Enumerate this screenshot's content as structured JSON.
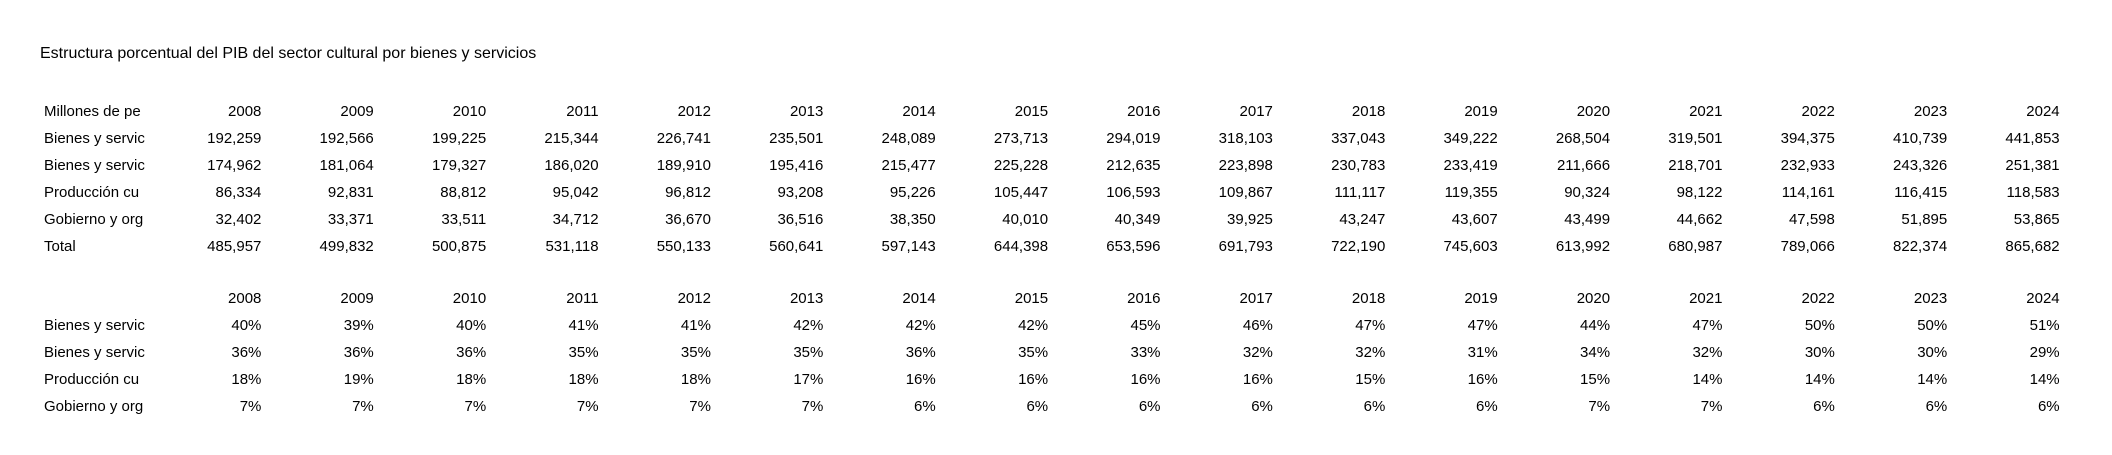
{
  "title": "Estructura porcentual del PIB del sector cultural por bienes y servicios",
  "years": [
    "2008",
    "2009",
    "2010",
    "2011",
    "2012",
    "2013",
    "2014",
    "2015",
    "2016",
    "2017",
    "2018",
    "2019",
    "2020",
    "2021",
    "2022",
    "2023",
    "2024"
  ],
  "values_table": {
    "corner_label": "Millones de pe",
    "rows": [
      {
        "label": "Bienes y servic",
        "values": [
          "192,259",
          "192,566",
          "199,225",
          "215,344",
          "226,741",
          "235,501",
          "248,089",
          "273,713",
          "294,019",
          "318,103",
          "337,043",
          "349,222",
          "268,504",
          "319,501",
          "394,375",
          "410,739",
          "441,853"
        ]
      },
      {
        "label": "Bienes y servic",
        "values": [
          "174,962",
          "181,064",
          "179,327",
          "186,020",
          "189,910",
          "195,416",
          "215,477",
          "225,228",
          "212,635",
          "223,898",
          "230,783",
          "233,419",
          "211,666",
          "218,701",
          "232,933",
          "243,326",
          "251,381"
        ]
      },
      {
        "label": "Producción cu",
        "values": [
          "86,334",
          "92,831",
          "88,812",
          "95,042",
          "96,812",
          "93,208",
          "95,226",
          "105,447",
          "106,593",
          "109,867",
          "111,117",
          "119,355",
          "90,324",
          "98,122",
          "114,161",
          "116,415",
          "118,583"
        ]
      },
      {
        "label": "Gobierno y org",
        "values": [
          "32,402",
          "33,371",
          "33,511",
          "34,712",
          "36,670",
          "36,516",
          "38,350",
          "40,010",
          "40,349",
          "39,925",
          "43,247",
          "43,607",
          "43,499",
          "44,662",
          "47,598",
          "51,895",
          "53,865"
        ]
      },
      {
        "label": "Total",
        "values": [
          "485,957",
          "499,832",
          "500,875",
          "531,118",
          "550,133",
          "560,641",
          "597,143",
          "644,398",
          "653,596",
          "691,793",
          "722,190",
          "745,603",
          "613,992",
          "680,987",
          "789,066",
          "822,374",
          "865,682"
        ]
      }
    ]
  },
  "percent_table": {
    "corner_label": "",
    "rows": [
      {
        "label": "Bienes y servic",
        "values": [
          "40%",
          "39%",
          "40%",
          "41%",
          "41%",
          "42%",
          "42%",
          "42%",
          "45%",
          "46%",
          "47%",
          "47%",
          "44%",
          "47%",
          "50%",
          "50%",
          "51%"
        ]
      },
      {
        "label": "Bienes y servic",
        "values": [
          "36%",
          "36%",
          "36%",
          "35%",
          "35%",
          "35%",
          "36%",
          "35%",
          "33%",
          "32%",
          "32%",
          "31%",
          "34%",
          "32%",
          "30%",
          "30%",
          "29%"
        ]
      },
      {
        "label": "Producción cu",
        "values": [
          "18%",
          "19%",
          "18%",
          "18%",
          "18%",
          "17%",
          "16%",
          "16%",
          "16%",
          "16%",
          "15%",
          "16%",
          "15%",
          "14%",
          "14%",
          "14%",
          "14%"
        ]
      },
      {
        "label": "Gobierno y org",
        "values": [
          "7%",
          "7%",
          "7%",
          "7%",
          "7%",
          "7%",
          "6%",
          "6%",
          "6%",
          "6%",
          "6%",
          "6%",
          "7%",
          "7%",
          "6%",
          "6%",
          "6%"
        ]
      }
    ]
  },
  "colors": {
    "background": "#ffffff",
    "text": "#000000"
  }
}
